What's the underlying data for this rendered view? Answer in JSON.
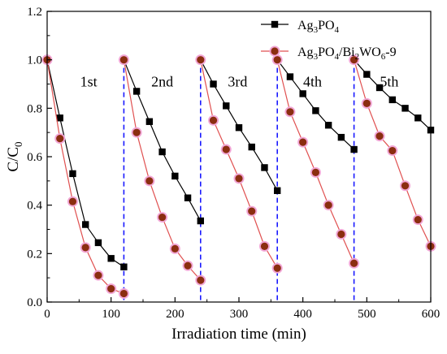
{
  "chart_data": {
    "type": "line",
    "xlabel": "Irradiation time (min)",
    "ylabel": "C/C",
    "ylabel_sub": "0",
    "xlim": [
      0,
      600
    ],
    "ylim": [
      0,
      1.2
    ],
    "xticks": [
      0,
      100,
      200,
      300,
      400,
      500,
      600
    ],
    "yticks": [
      0.0,
      0.2,
      0.4,
      0.6,
      0.8,
      1.0,
      1.2
    ],
    "grid": false,
    "legend_position": "top-right",
    "cycle_dividers_x": [
      120,
      240,
      360,
      480
    ],
    "cycle_labels": [
      {
        "text": "1st",
        "x": 65,
        "y": 0.91
      },
      {
        "text": "2nd",
        "x": 180,
        "y": 0.91
      },
      {
        "text": "3rd",
        "x": 298,
        "y": 0.91
      },
      {
        "text": "4th",
        "x": 415,
        "y": 0.91
      },
      {
        "text": "5th",
        "x": 535,
        "y": 0.91
      }
    ],
    "series": [
      {
        "name": "Ag3PO4",
        "legend_parts": [
          {
            "text": "Ag",
            "sub": false
          },
          {
            "text": "3",
            "sub": true
          },
          {
            "text": "PO",
            "sub": false
          },
          {
            "text": "4",
            "sub": true
          }
        ],
        "color": "#000000",
        "marker": "square",
        "cycles": [
          [
            [
              0,
              1.0
            ],
            [
              20,
              0.76
            ],
            [
              40,
              0.53
            ],
            [
              60,
              0.32
            ],
            [
              80,
              0.245
            ],
            [
              100,
              0.18
            ],
            [
              120,
              0.145
            ]
          ],
          [
            [
              120,
              1.0
            ],
            [
              140,
              0.87
            ],
            [
              160,
              0.745
            ],
            [
              180,
              0.62
            ],
            [
              200,
              0.52
            ],
            [
              220,
              0.43
            ],
            [
              240,
              0.335
            ]
          ],
          [
            [
              240,
              1.0
            ],
            [
              260,
              0.9
            ],
            [
              280,
              0.81
            ],
            [
              300,
              0.72
            ],
            [
              320,
              0.64
            ],
            [
              340,
              0.555
            ],
            [
              360,
              0.46
            ]
          ],
          [
            [
              360,
              1.0
            ],
            [
              380,
              0.93
            ],
            [
              400,
              0.86
            ],
            [
              420,
              0.79
            ],
            [
              440,
              0.73
            ],
            [
              460,
              0.68
            ],
            [
              480,
              0.63
            ]
          ],
          [
            [
              480,
              1.0
            ],
            [
              500,
              0.94
            ],
            [
              520,
              0.885
            ],
            [
              540,
              0.835
            ],
            [
              560,
              0.8
            ],
            [
              580,
              0.76
            ],
            [
              600,
              0.71
            ]
          ]
        ]
      },
      {
        "name": "Ag3PO4/Bi2WO6-9",
        "legend_parts": [
          {
            "text": "Ag",
            "sub": false
          },
          {
            "text": "3",
            "sub": true
          },
          {
            "text": "PO",
            "sub": false
          },
          {
            "text": "4",
            "sub": true
          },
          {
            "text": "/Bi",
            "sub": false
          },
          {
            "text": "2",
            "sub": true
          },
          {
            "text": "WO",
            "sub": false
          },
          {
            "text": "6",
            "sub": true
          },
          {
            "text": "-9",
            "sub": false
          }
        ],
        "color": "#e05050",
        "marker_fill": "#8b2e10",
        "marker_halo": "#f2a6d6",
        "marker": "circle",
        "cycles": [
          [
            [
              0,
              1.0
            ],
            [
              20,
              0.675
            ],
            [
              40,
              0.415
            ],
            [
              60,
              0.225
            ],
            [
              80,
              0.11
            ],
            [
              100,
              0.055
            ],
            [
              120,
              0.035
            ]
          ],
          [
            [
              120,
              1.0
            ],
            [
              140,
              0.7
            ],
            [
              160,
              0.5
            ],
            [
              180,
              0.35
            ],
            [
              200,
              0.22
            ],
            [
              220,
              0.15
            ],
            [
              240,
              0.09
            ]
          ],
          [
            [
              240,
              1.0
            ],
            [
              260,
              0.75
            ],
            [
              280,
              0.63
            ],
            [
              300,
              0.51
            ],
            [
              320,
              0.375
            ],
            [
              340,
              0.23
            ],
            [
              360,
              0.14
            ]
          ],
          [
            [
              360,
              1.0
            ],
            [
              380,
              0.785
            ],
            [
              400,
              0.66
            ],
            [
              420,
              0.535
            ],
            [
              440,
              0.4
            ],
            [
              460,
              0.28
            ],
            [
              480,
              0.16
            ]
          ],
          [
            [
              480,
              1.0
            ],
            [
              500,
              0.82
            ],
            [
              520,
              0.685
            ],
            [
              540,
              0.625
            ],
            [
              560,
              0.48
            ],
            [
              580,
              0.34
            ],
            [
              600,
              0.23
            ]
          ]
        ]
      }
    ]
  }
}
